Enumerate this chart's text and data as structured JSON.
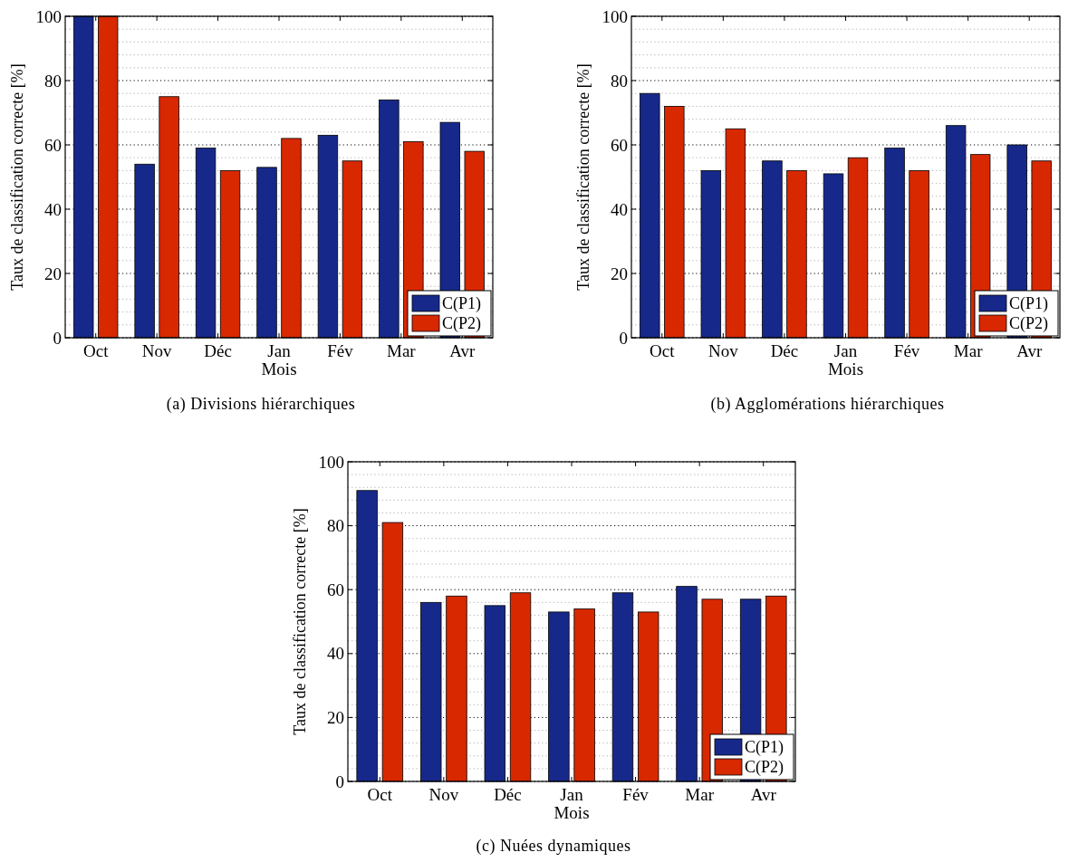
{
  "chart_data": [
    {
      "type": "bar",
      "title": "(a) Divisions hiérarchiques",
      "xlabel": "Mois",
      "ylabel": "Taux de classification correcte [%]",
      "categories": [
        "Oct",
        "Nov",
        "Déc",
        "Jan",
        "Fév",
        "Mar",
        "Avr"
      ],
      "series": [
        {
          "name": "C(P1)",
          "color": "#16298a",
          "values": [
            100,
            54,
            59,
            53,
            63,
            74,
            67
          ]
        },
        {
          "name": "C(P2)",
          "color": "#d82800",
          "values": [
            100,
            75,
            52,
            62,
            55,
            61,
            58
          ]
        }
      ],
      "ylim": [
        0,
        100
      ],
      "yticks": [
        0,
        {
          "value": 4,
          "label": null
        },
        {
          "value": 8,
          "label": null
        },
        {
          "value": 12,
          "label": null
        },
        {
          "value": 16,
          "label": null
        },
        20,
        {
          "value": 24,
          "label": null
        },
        {
          "value": 28,
          "label": null
        },
        {
          "value": 32,
          "label": null
        },
        {
          "value": 36,
          "label": null
        },
        40,
        {
          "value": 44,
          "label": null
        },
        {
          "value": 48,
          "label": null
        },
        {
          "value": 52,
          "label": null
        },
        {
          "value": 56,
          "label": null
        },
        60,
        {
          "value": 64,
          "label": null
        },
        {
          "value": 68,
          "label": null
        },
        {
          "value": 72,
          "label": null
        },
        {
          "value": 76,
          "label": null
        },
        80,
        {
          "value": 84,
          "label": null
        },
        {
          "value": 88,
          "label": null
        },
        {
          "value": 92,
          "label": null
        },
        {
          "value": 96,
          "label": null
        },
        100
      ],
      "grid": true,
      "legend": "bottom right"
    },
    {
      "type": "bar",
      "title": "(b) Agglomérations hiérarchiques",
      "xlabel": "Mois",
      "ylabel": "Taux de classification correcte [%]",
      "categories": [
        "Oct",
        "Nov",
        "Déc",
        "Jan",
        "Fév",
        "Mar",
        "Avr"
      ],
      "series": [
        {
          "name": "C(P1)",
          "color": "#16298a",
          "values": [
            76,
            52,
            55,
            51,
            59,
            66,
            60
          ]
        },
        {
          "name": "C(P2)",
          "color": "#d82800",
          "values": [
            72,
            65,
            52,
            56,
            52,
            57,
            55
          ]
        }
      ],
      "ylim": [
        0,
        100
      ],
      "yticks": [
        0,
        {
          "value": 4,
          "label": null
        },
        {
          "value": 8,
          "label": null
        },
        {
          "value": 12,
          "label": null
        },
        {
          "value": 16,
          "label": null
        },
        20,
        {
          "value": 24,
          "label": null
        },
        {
          "value": 28,
          "label": null
        },
        {
          "value": 32,
          "label": null
        },
        {
          "value": 36,
          "label": null
        },
        40,
        {
          "value": 44,
          "label": null
        },
        {
          "value": 48,
          "label": null
        },
        {
          "value": 52,
          "label": null
        },
        {
          "value": 56,
          "label": null
        },
        60,
        {
          "value": 64,
          "label": null
        },
        {
          "value": 68,
          "label": null
        },
        {
          "value": 72,
          "label": null
        },
        {
          "value": 76,
          "label": null
        },
        80,
        {
          "value": 84,
          "label": null
        },
        {
          "value": 88,
          "label": null
        },
        {
          "value": 92,
          "label": null
        },
        {
          "value": 96,
          "label": null
        },
        100
      ],
      "grid": true,
      "legend": "bottom right"
    },
    {
      "type": "bar",
      "title": "(c) Nuées dynamiques",
      "xlabel": "Mois",
      "ylabel": "Taux de classification correcte [%]",
      "categories": [
        "Oct",
        "Nov",
        "Déc",
        "Jan",
        "Fév",
        "Mar",
        "Avr"
      ],
      "series": [
        {
          "name": "C(P1)",
          "color": "#16298a",
          "values": [
            91,
            56,
            55,
            53,
            59,
            61,
            57
          ]
        },
        {
          "name": "C(P2)",
          "color": "#d82800",
          "values": [
            81,
            58,
            59,
            54,
            53,
            57,
            58
          ]
        }
      ],
      "ylim": [
        0,
        100
      ],
      "yticks": [
        0,
        {
          "value": 4,
          "label": null
        },
        {
          "value": 8,
          "label": null
        },
        {
          "value": 12,
          "label": null
        },
        {
          "value": 16,
          "label": null
        },
        20,
        {
          "value": 24,
          "label": null
        },
        {
          "value": 28,
          "label": null
        },
        {
          "value": 32,
          "label": null
        },
        {
          "value": 36,
          "label": null
        },
        40,
        {
          "value": 44,
          "label": null
        },
        {
          "value": 48,
          "label": null
        },
        {
          "value": 52,
          "label": null
        },
        {
          "value": 56,
          "label": null
        },
        60,
        {
          "value": 64,
          "label": null
        },
        {
          "value": 68,
          "label": null
        },
        {
          "value": 72,
          "label": null
        },
        {
          "value": 76,
          "label": null
        },
        80,
        {
          "value": 84,
          "label": null
        },
        {
          "value": 88,
          "label": null
        },
        {
          "value": 92,
          "label": null
        },
        {
          "value": 96,
          "label": null
        },
        100
      ],
      "grid": true,
      "legend": "bottom right"
    }
  ]
}
